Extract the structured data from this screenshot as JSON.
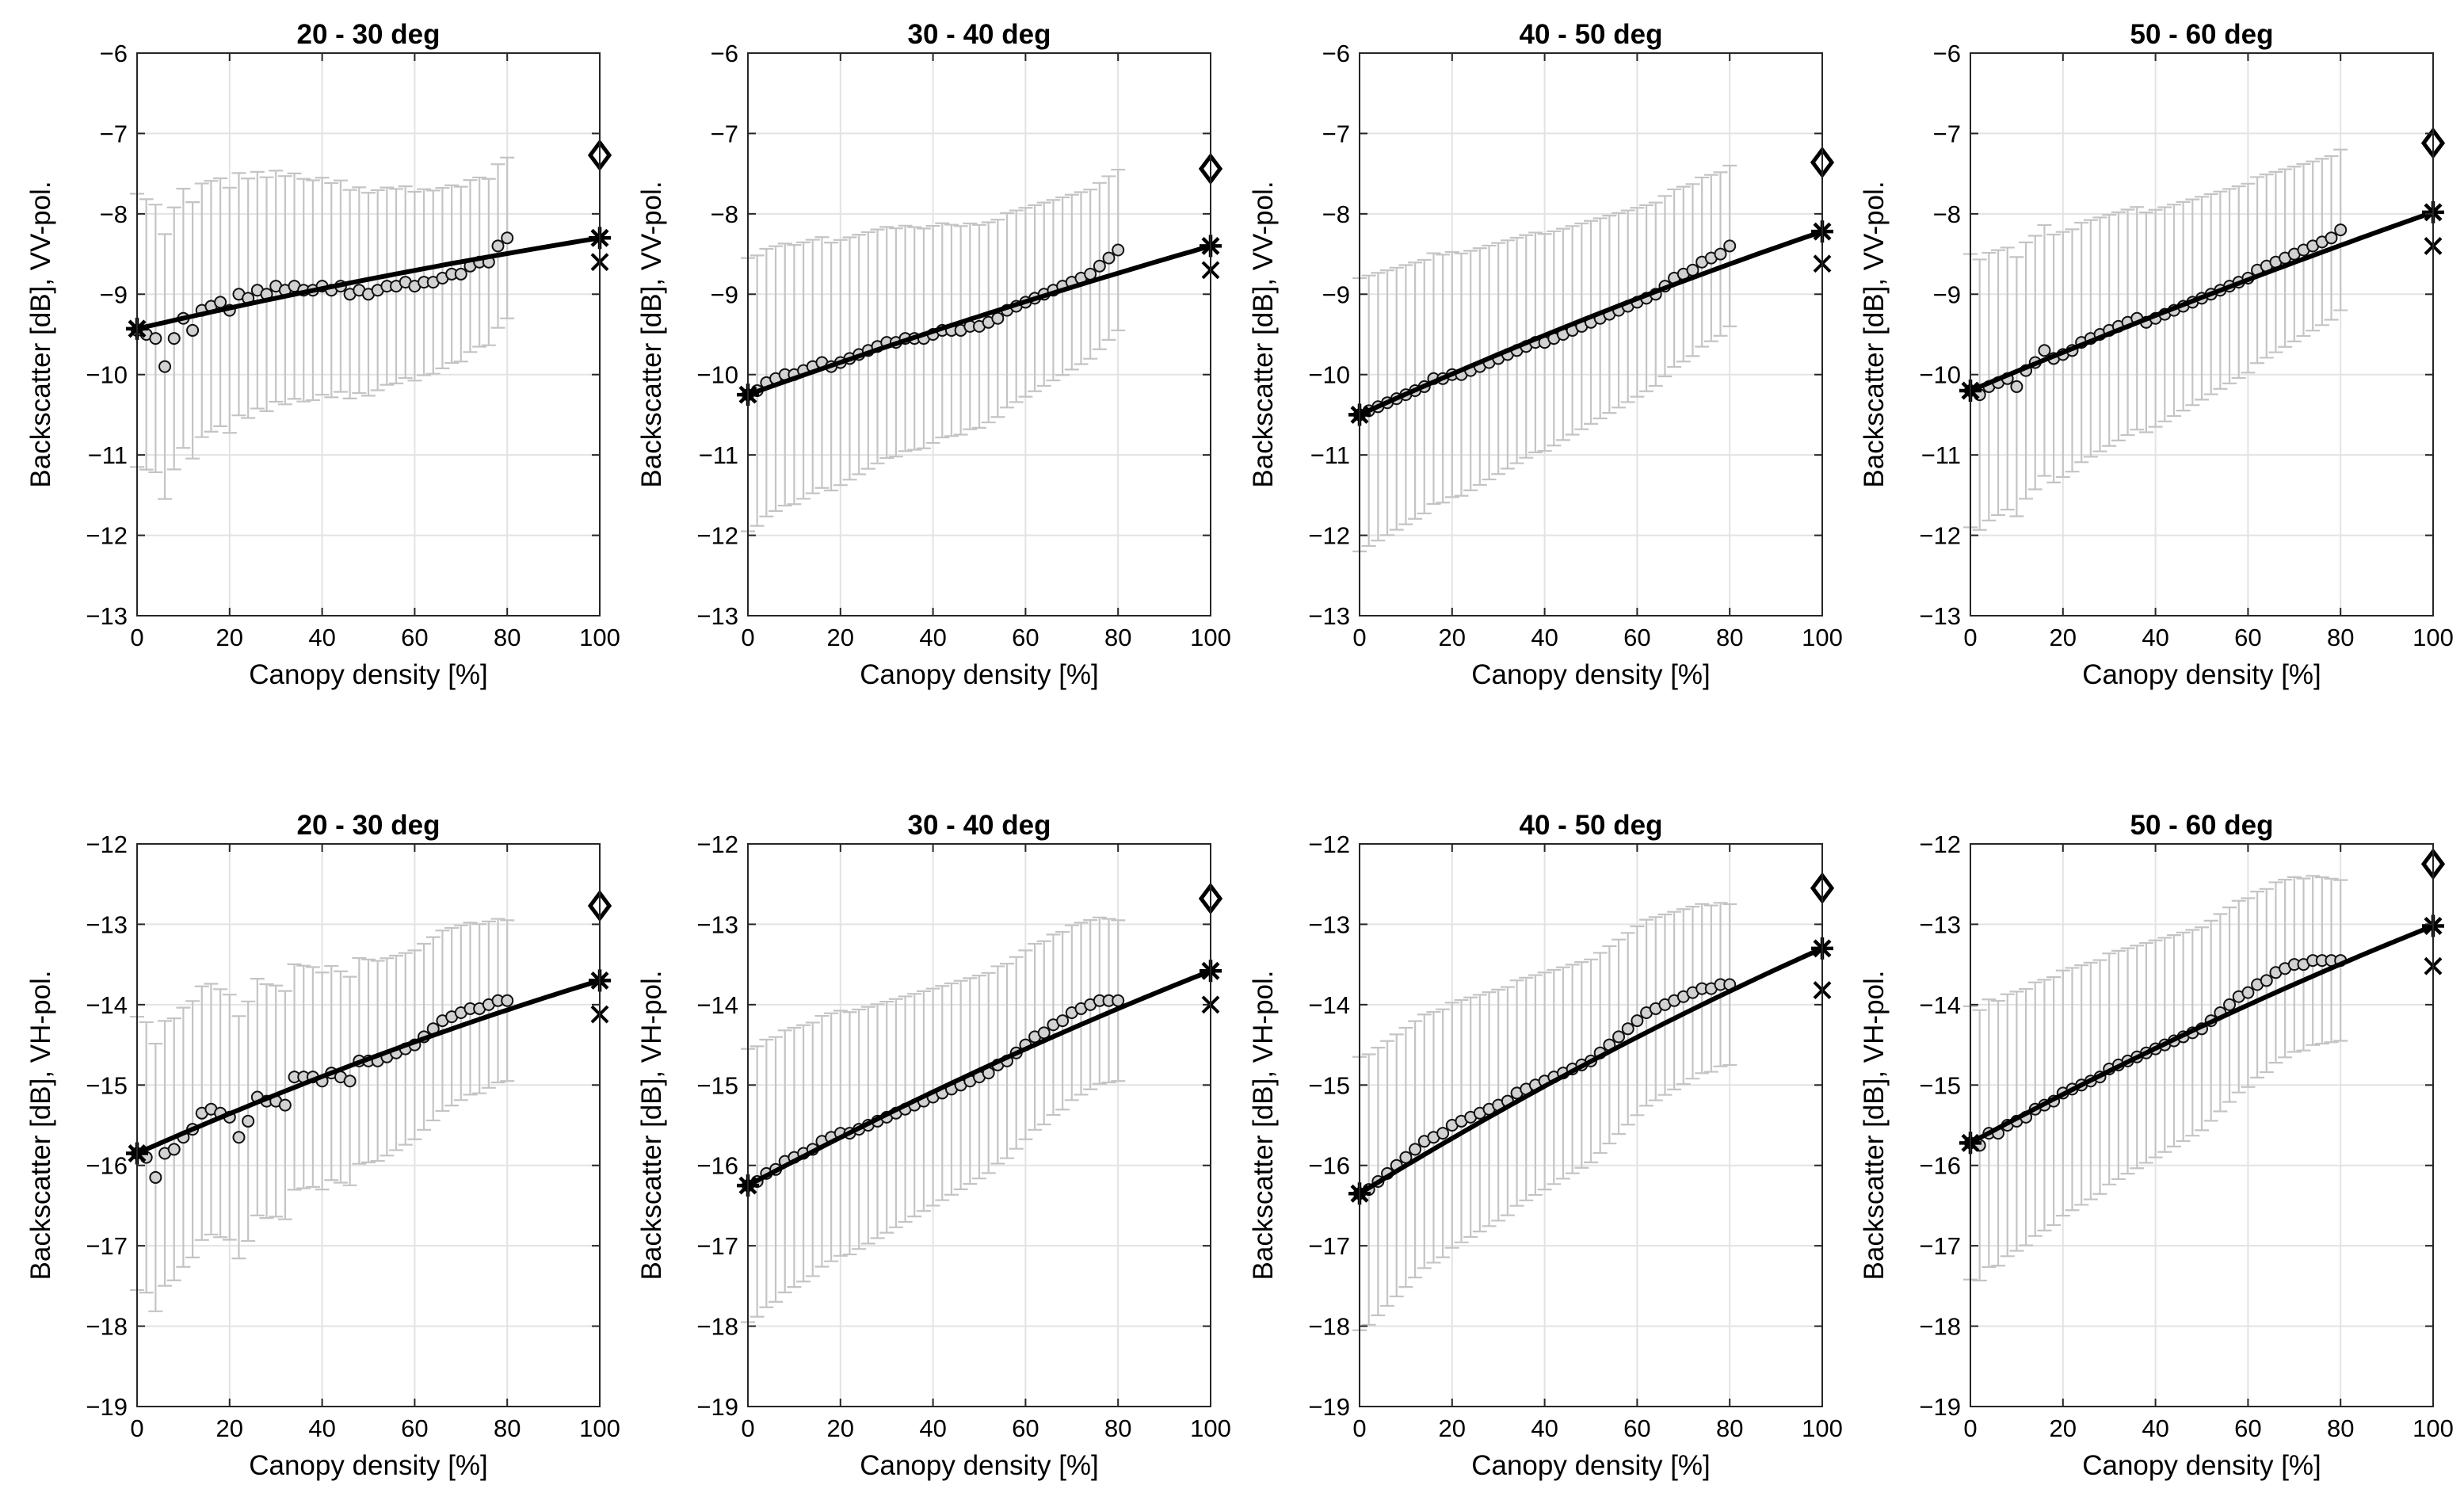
{
  "figure": {
    "type": "line",
    "x_tick_labels": [
      "0",
      "20",
      "40",
      "60",
      "80",
      "100"
    ],
    "vv_y_tick_labels": [
      "−13",
      "−12",
      "−11",
      "−10",
      "−9",
      "−8",
      "−7",
      "−6"
    ],
    "vh_y_tick_labels": [
      "−19",
      "−18",
      "−17",
      "−16",
      "−15",
      "−14",
      "−13",
      "−12"
    ]
  },
  "chart_data": [
    {
      "type": "line",
      "title": "20 - 30 deg",
      "xlabel": "Canopy density [%]",
      "ylabel": "Backscatter [dB], VV-pol.",
      "xlim": [
        0,
        100
      ],
      "ylim": [
        -13,
        -6
      ],
      "grid": true,
      "fit": [
        [
          0,
          -9.43
        ],
        [
          100,
          -8.3
        ]
      ],
      "fit_curvature": 0.05,
      "binned_means": {
        "x_start": 0,
        "x_end": 80,
        "y": [
          -9.45,
          -9.5,
          -9.55,
          -9.9,
          -9.55,
          -9.3,
          -9.45,
          -9.2,
          -9.15,
          -9.1,
          -9.2,
          -9.0,
          -9.05,
          -8.95,
          -9.0,
          -8.9,
          -8.95,
          -8.9,
          -8.95,
          -8.95,
          -8.9,
          -8.95,
          -8.9,
          -9.0,
          -8.95,
          -9.0,
          -8.95,
          -8.9,
          -8.9,
          -8.85,
          -8.9,
          -8.85,
          -8.85,
          -8.8,
          -8.75,
          -8.75,
          -8.65,
          -8.6,
          -8.6,
          -8.4,
          -8.3
        ]
      },
      "errorbar_spread": [
        1.7,
        1.0
      ],
      "markers_at_100": {
        "star": -8.3,
        "diamond": -7.27,
        "cross": -8.6
      }
    },
    {
      "type": "line",
      "title": "30 - 40 deg",
      "xlabel": "Canopy density [%]",
      "ylabel": "Backscatter [dB], VV-pol.",
      "xlim": [
        0,
        100
      ],
      "ylim": [
        -13,
        -6
      ],
      "grid": true,
      "fit": [
        [
          0,
          -10.25
        ],
        [
          100,
          -8.4
        ]
      ],
      "fit_curvature": 0.05,
      "binned_means": {
        "x_start": 0,
        "x_end": 80,
        "y": [
          -10.25,
          -10.2,
          -10.1,
          -10.05,
          -10.0,
          -10.0,
          -9.95,
          -9.9,
          -9.85,
          -9.9,
          -9.85,
          -9.8,
          -9.75,
          -9.7,
          -9.65,
          -9.6,
          -9.6,
          -9.55,
          -9.55,
          -9.55,
          -9.5,
          -9.45,
          -9.45,
          -9.45,
          -9.4,
          -9.4,
          -9.35,
          -9.3,
          -9.2,
          -9.15,
          -9.1,
          -9.05,
          -9.0,
          -8.95,
          -8.9,
          -8.85,
          -8.8,
          -8.75,
          -8.65,
          -8.55,
          -8.45
        ]
      },
      "errorbar_spread": [
        1.7,
        1.0
      ],
      "markers_at_100": {
        "star": -8.4,
        "diamond": -7.44,
        "cross": -8.7
      }
    },
    {
      "type": "line",
      "title": "40 - 50 deg",
      "xlabel": "Canopy density [%]",
      "ylabel": "Backscatter [dB], VV-pol.",
      "xlim": [
        0,
        100
      ],
      "ylim": [
        -13,
        -6
      ],
      "grid": true,
      "fit": [
        [
          0,
          -10.5
        ],
        [
          100,
          -8.22
        ]
      ],
      "fit_curvature": 0.08,
      "binned_means": {
        "x_start": 0,
        "x_end": 80,
        "y": [
          -10.5,
          -10.45,
          -10.4,
          -10.35,
          -10.3,
          -10.25,
          -10.2,
          -10.15,
          -10.05,
          -10.05,
          -10.0,
          -10.0,
          -9.95,
          -9.9,
          -9.85,
          -9.8,
          -9.75,
          -9.7,
          -9.65,
          -9.6,
          -9.6,
          -9.55,
          -9.5,
          -9.45,
          -9.4,
          -9.35,
          -9.3,
          -9.25,
          -9.2,
          -9.15,
          -9.1,
          -9.05,
          -9.0,
          -8.9,
          -8.8,
          -8.75,
          -8.7,
          -8.6,
          -8.55,
          -8.5,
          -8.4
        ]
      },
      "errorbar_spread": [
        1.7,
        1.0
      ],
      "markers_at_100": {
        "star": -8.22,
        "diamond": -7.36,
        "cross": -8.62
      }
    },
    {
      "type": "line",
      "title": "50 - 60 deg",
      "xlabel": "Canopy density [%]",
      "ylabel": "Backscatter [dB], VV-pol.",
      "xlim": [
        0,
        100
      ],
      "ylim": [
        -13,
        -6
      ],
      "grid": true,
      "fit": [
        [
          0,
          -10.2
        ],
        [
          100,
          -7.98
        ]
      ],
      "fit_curvature": 0.05,
      "binned_means": {
        "x_start": 0,
        "x_end": 80,
        "y": [
          -10.2,
          -10.25,
          -10.15,
          -10.1,
          -10.05,
          -10.15,
          -9.95,
          -9.85,
          -9.7,
          -9.8,
          -9.75,
          -9.7,
          -9.6,
          -9.55,
          -9.5,
          -9.45,
          -9.4,
          -9.35,
          -9.3,
          -9.35,
          -9.3,
          -9.25,
          -9.2,
          -9.15,
          -9.1,
          -9.05,
          -9.0,
          -8.95,
          -8.9,
          -8.85,
          -8.8,
          -8.7,
          -8.65,
          -8.6,
          -8.55,
          -8.5,
          -8.45,
          -8.4,
          -8.35,
          -8.3,
          -8.2
        ]
      },
      "errorbar_spread": [
        1.7,
        1.0
      ],
      "markers_at_100": {
        "star": -7.98,
        "diamond": -7.12,
        "cross": -8.4
      }
    },
    {
      "type": "line",
      "title": "20 - 30 deg",
      "xlabel": "Canopy density [%]",
      "ylabel": "Backscatter [dB], VH-pol.",
      "xlim": [
        0,
        100
      ],
      "ylim": [
        -19,
        -12
      ],
      "grid": true,
      "fit": [
        [
          0,
          -15.85
        ],
        [
          100,
          -13.7
        ]
      ],
      "fit_curvature": 0.1,
      "binned_means": {
        "x_start": 0,
        "x_end": 80,
        "y": [
          -15.85,
          -15.9,
          -16.15,
          -15.85,
          -15.8,
          -15.65,
          -15.55,
          -15.35,
          -15.3,
          -15.35,
          -15.4,
          -15.65,
          -15.45,
          -15.15,
          -15.2,
          -15.2,
          -15.25,
          -14.9,
          -14.9,
          -14.9,
          -14.95,
          -14.85,
          -14.9,
          -14.95,
          -14.7,
          -14.7,
          -14.7,
          -14.65,
          -14.6,
          -14.55,
          -14.5,
          -14.4,
          -14.3,
          -14.2,
          -14.15,
          -14.1,
          -14.05,
          -14.05,
          -14.0,
          -13.95,
          -13.95
        ]
      },
      "errorbar_spread": [
        1.7,
        1.0
      ],
      "markers_at_100": {
        "star": -13.7,
        "diamond": -12.77,
        "cross": -14.12
      }
    },
    {
      "type": "line",
      "title": "30 - 40 deg",
      "xlabel": "Canopy density [%]",
      "ylabel": "Backscatter [dB], VH-pol.",
      "xlim": [
        0,
        100
      ],
      "ylim": [
        -19,
        -12
      ],
      "grid": true,
      "fit": [
        [
          0,
          -16.25
        ],
        [
          100,
          -13.58
        ]
      ],
      "fit_curvature": 0.1,
      "binned_means": {
        "x_start": 0,
        "x_end": 80,
        "y": [
          -16.25,
          -16.2,
          -16.1,
          -16.05,
          -15.95,
          -15.9,
          -15.85,
          -15.8,
          -15.7,
          -15.65,
          -15.6,
          -15.6,
          -15.55,
          -15.5,
          -15.45,
          -15.4,
          -15.35,
          -15.3,
          -15.25,
          -15.2,
          -15.15,
          -15.1,
          -15.05,
          -15.0,
          -14.95,
          -14.9,
          -14.85,
          -14.75,
          -14.7,
          -14.6,
          -14.5,
          -14.4,
          -14.35,
          -14.25,
          -14.2,
          -14.1,
          -14.05,
          -14.0,
          -13.95,
          -13.95,
          -13.95
        ]
      },
      "errorbar_spread": [
        1.7,
        1.0
      ],
      "markers_at_100": {
        "star": -13.58,
        "diamond": -12.68,
        "cross": -14.0
      }
    },
    {
      "type": "line",
      "title": "40 - 50 deg",
      "xlabel": "Canopy density [%]",
      "ylabel": "Backscatter [dB], VH-pol.",
      "xlim": [
        0,
        100
      ],
      "ylim": [
        -19,
        -12
      ],
      "grid": true,
      "fit": [
        [
          0,
          -16.35
        ],
        [
          100,
          -13.3
        ]
      ],
      "fit_curvature": 0.12,
      "binned_means": {
        "x_start": 0,
        "x_end": 80,
        "y": [
          -16.35,
          -16.3,
          -16.2,
          -16.1,
          -16.0,
          -15.9,
          -15.8,
          -15.7,
          -15.65,
          -15.6,
          -15.5,
          -15.45,
          -15.4,
          -15.35,
          -15.3,
          -15.25,
          -15.2,
          -15.1,
          -15.05,
          -15.0,
          -14.95,
          -14.9,
          -14.85,
          -14.8,
          -14.75,
          -14.7,
          -14.6,
          -14.5,
          -14.4,
          -14.3,
          -14.2,
          -14.1,
          -14.05,
          -14.0,
          -13.95,
          -13.9,
          -13.85,
          -13.8,
          -13.8,
          -13.75,
          -13.75
        ]
      },
      "errorbar_spread": [
        1.7,
        1.0
      ],
      "markers_at_100": {
        "star": -13.3,
        "diamond": -12.55,
        "cross": -13.82
      }
    },
    {
      "type": "line",
      "title": "50 - 60 deg",
      "xlabel": "Canopy density [%]",
      "ylabel": "Backscatter [dB], VH-pol.",
      "xlim": [
        0,
        100
      ],
      "ylim": [
        -19,
        -12
      ],
      "grid": true,
      "fit": [
        [
          0,
          -15.72
        ],
        [
          100,
          -13.02
        ]
      ],
      "fit_curvature": 0.1,
      "binned_means": {
        "x_start": 0,
        "x_end": 80,
        "y": [
          -15.72,
          -15.75,
          -15.6,
          -15.6,
          -15.5,
          -15.45,
          -15.4,
          -15.3,
          -15.25,
          -15.2,
          -15.1,
          -15.05,
          -15.0,
          -14.95,
          -14.9,
          -14.8,
          -14.75,
          -14.7,
          -14.65,
          -14.6,
          -14.55,
          -14.5,
          -14.45,
          -14.4,
          -14.35,
          -14.3,
          -14.2,
          -14.1,
          -14.0,
          -13.9,
          -13.85,
          -13.75,
          -13.7,
          -13.6,
          -13.55,
          -13.5,
          -13.5,
          -13.45,
          -13.45,
          -13.45,
          -13.45
        ]
      },
      "errorbar_spread": [
        1.7,
        1.0
      ],
      "markers_at_100": {
        "star": -13.02,
        "diamond": -12.25,
        "cross": -13.52
      }
    }
  ]
}
